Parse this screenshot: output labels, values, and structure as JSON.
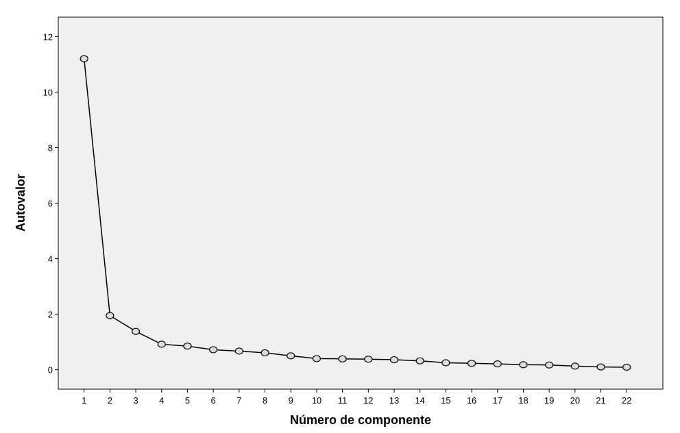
{
  "chart_data": {
    "type": "line",
    "title": "",
    "xlabel": "Número de componente",
    "ylabel": "Autovalor",
    "x": [
      1,
      2,
      3,
      4,
      5,
      6,
      7,
      8,
      9,
      10,
      11,
      12,
      13,
      14,
      15,
      16,
      17,
      18,
      19,
      20,
      21,
      22
    ],
    "series": [
      {
        "values": [
          11.2,
          1.95,
          1.38,
          0.92,
          0.85,
          0.72,
          0.67,
          0.61,
          0.5,
          0.4,
          0.39,
          0.38,
          0.36,
          0.32,
          0.25,
          0.23,
          0.21,
          0.18,
          0.17,
          0.13,
          0.1,
          0.09
        ]
      }
    ],
    "yticks": [
      0,
      2,
      4,
      6,
      8,
      10,
      12
    ],
    "xlim": [
      0.0,
      23.4
    ],
    "ylim": [
      -0.7,
      12.7
    ],
    "grid": false,
    "colors": {
      "plot_background": "#f0f0f0",
      "line": "#000000",
      "marker_fill": "#dcdcdc"
    }
  }
}
